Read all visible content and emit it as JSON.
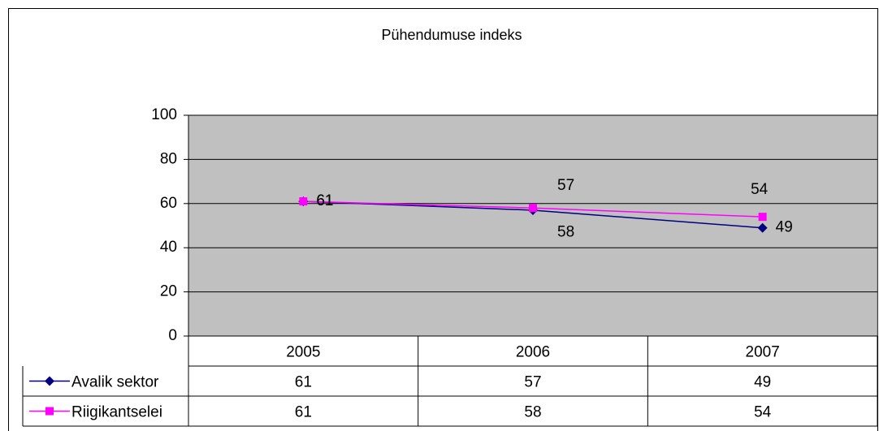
{
  "chart_data": {
    "type": "line",
    "title": "Pühendumuse indeks",
    "categories": [
      "2005",
      "2006",
      "2007"
    ],
    "series": [
      {
        "name": "Avalik sektor",
        "color": "#000080",
        "marker": "diamond",
        "values": [
          61,
          57,
          49
        ]
      },
      {
        "name": "Riigikantselei",
        "color": "#ff00ff",
        "marker": "square",
        "values": [
          61,
          58,
          54
        ]
      }
    ],
    "ylim": [
      0,
      100
    ],
    "yticks": [
      0,
      20,
      40,
      60,
      80,
      100
    ],
    "grid": true,
    "plot_background": "#c0c0c0",
    "data_table": true
  }
}
